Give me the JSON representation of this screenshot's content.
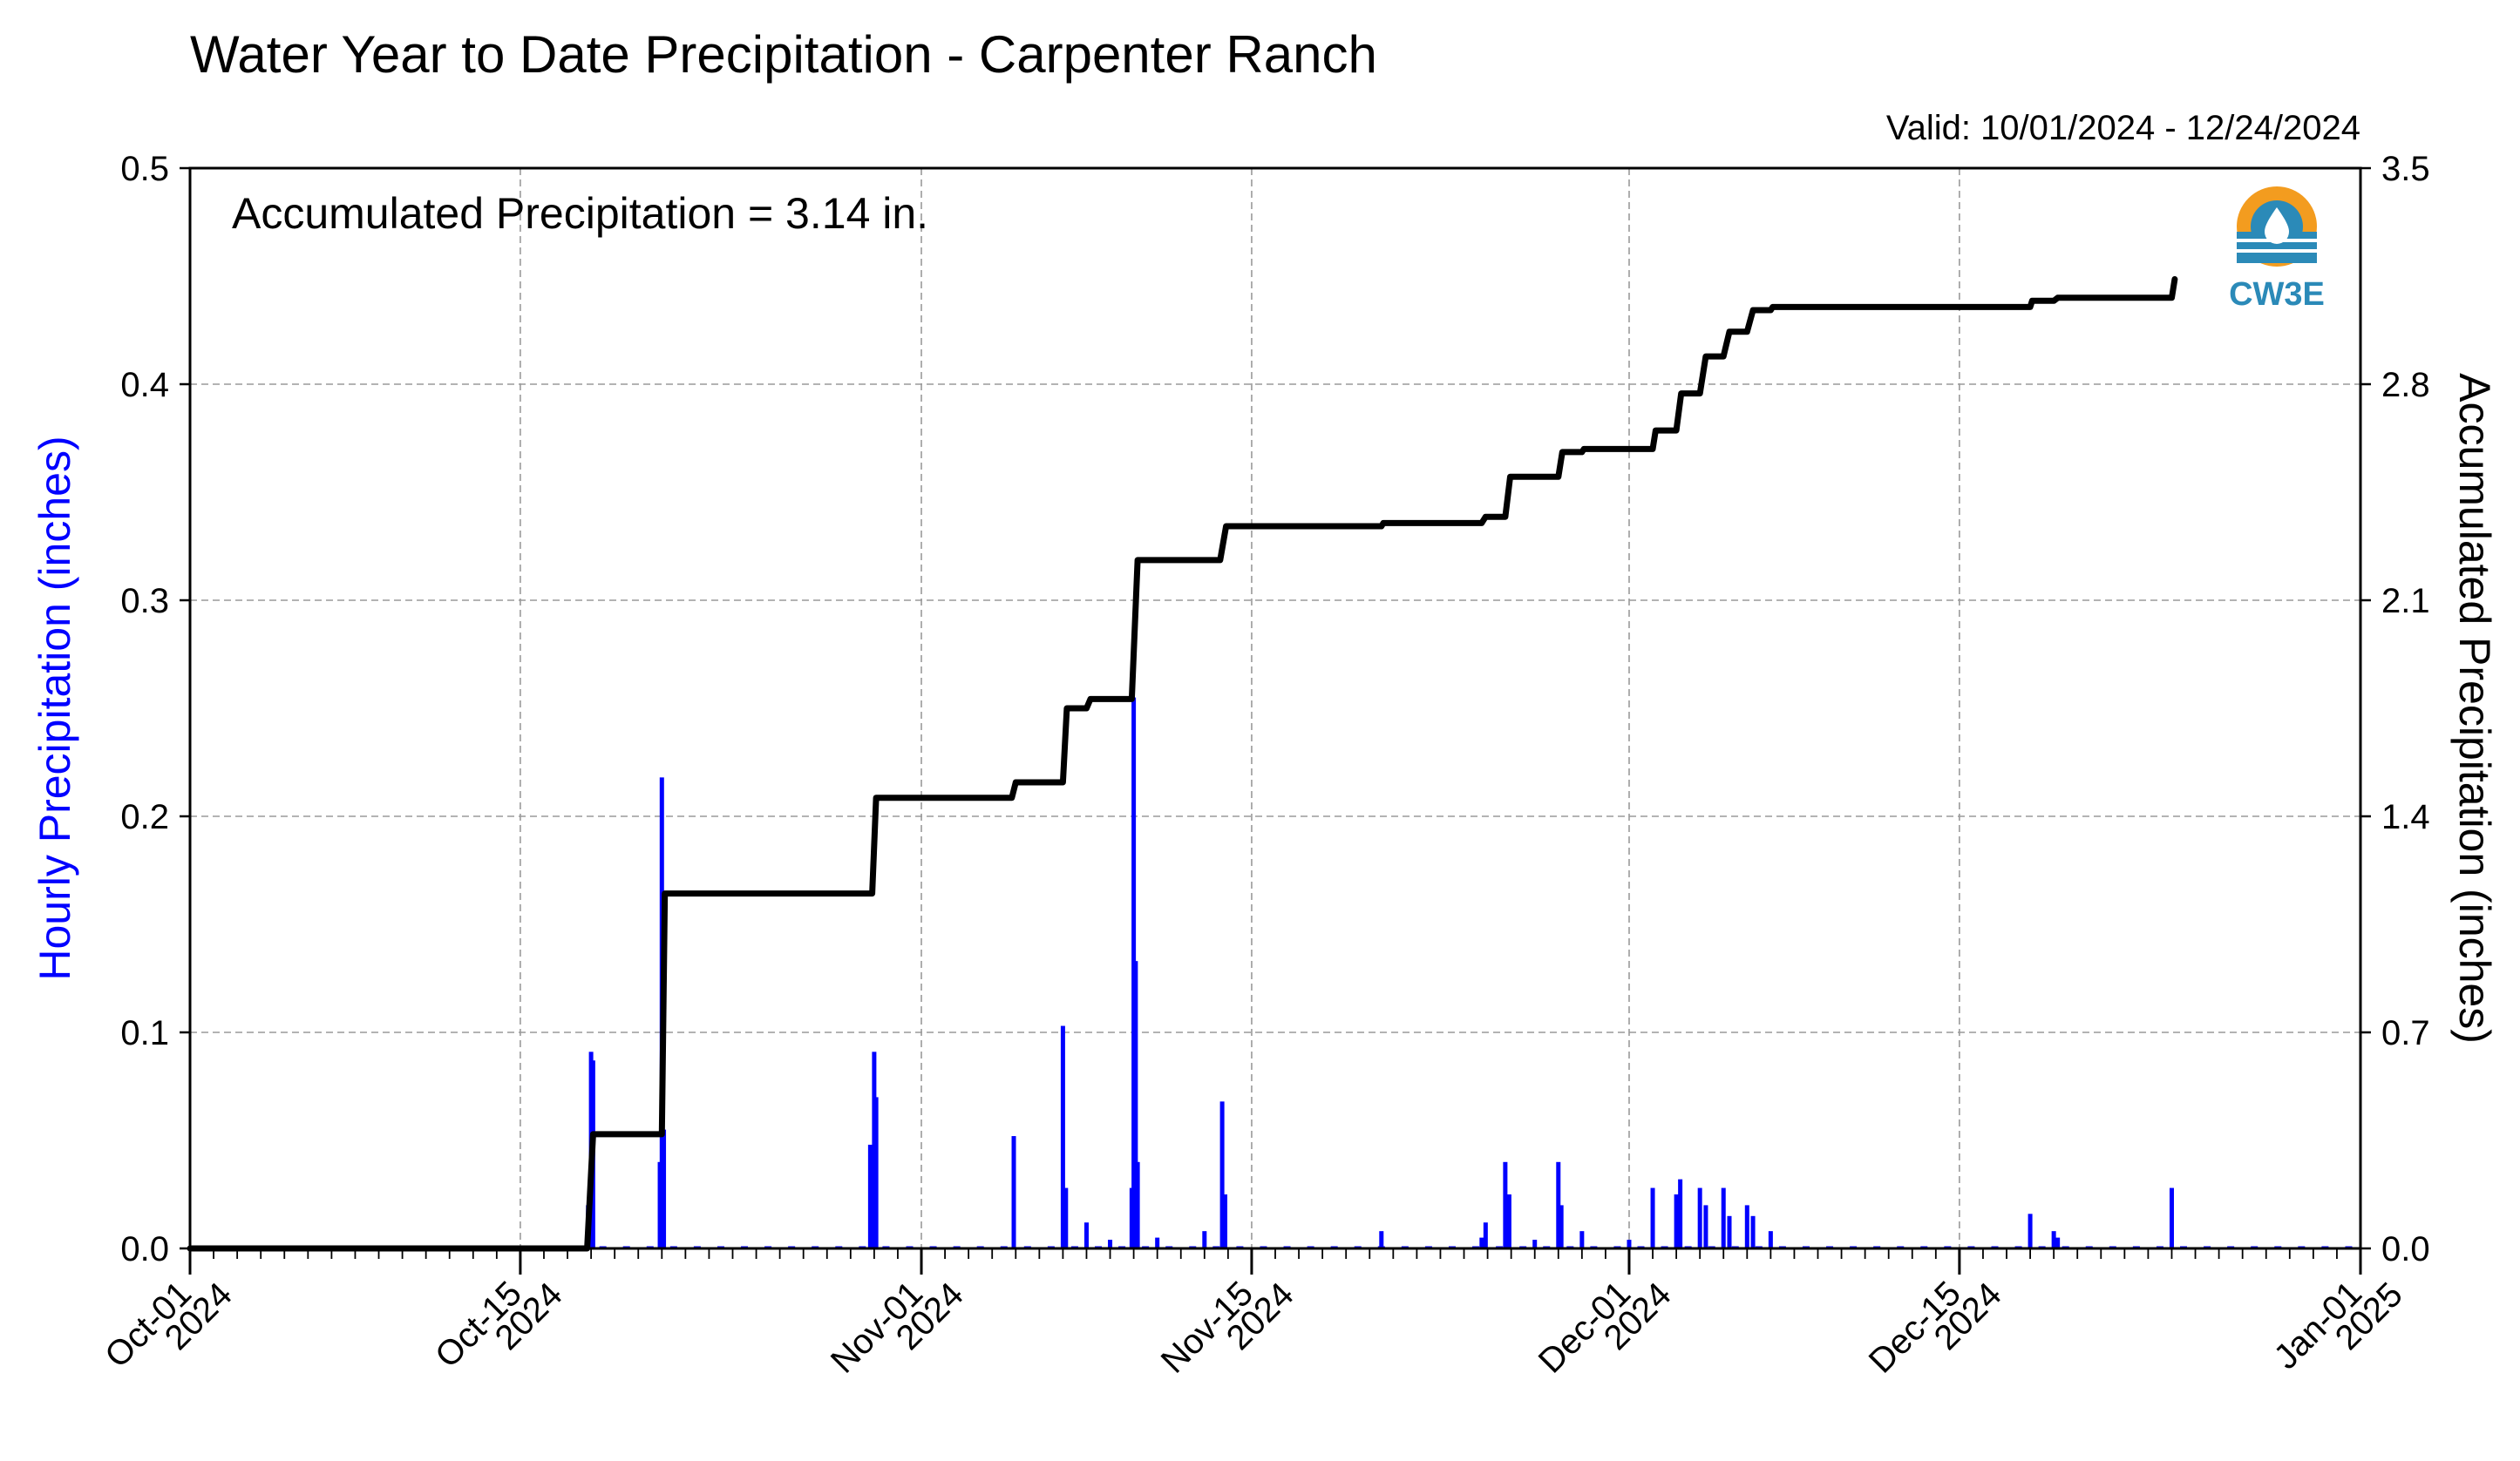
{
  "chart_data": {
    "type": "bar",
    "title": "Water Year to Date Precipitation - Carpenter Ranch",
    "subtitle": "Valid: 10/01/2024 - 12/24/2024",
    "annotation": "Accumulated Precipitation = 3.14 in.",
    "ylabel_left": "Hourly Precipitation (inches)",
    "ylabel_right": "Accumulated Precipitation (inches)",
    "xlabel": "",
    "x_start": "2024-10-01",
    "x_end": "2025-01-01",
    "ylim_left": [
      0,
      0.5
    ],
    "ylim_right": [
      0,
      3.5
    ],
    "grid": true,
    "left_ticks": [
      "0.0",
      "0.1",
      "0.2",
      "0.3",
      "0.4",
      "0.5"
    ],
    "right_ticks": [
      "0.0",
      "0.7",
      "1.4",
      "2.1",
      "2.8",
      "3.5"
    ],
    "x_ticks": [
      {
        "date": "2024-10-01",
        "line1": "Oct-01",
        "line2": "2024"
      },
      {
        "date": "2024-10-15",
        "line1": "Oct-15",
        "line2": "2024"
      },
      {
        "date": "2024-11-01",
        "line1": "Nov-01",
        "line2": "2024"
      },
      {
        "date": "2024-11-15",
        "line1": "Nov-15",
        "line2": "2024"
      },
      {
        "date": "2024-12-01",
        "line1": "Dec-01",
        "line2": "2024"
      },
      {
        "date": "2024-12-15",
        "line1": "Dec-15",
        "line2": "2024"
      },
      {
        "date": "2025-01-01",
        "line1": "Jan-01",
        "line2": "2025"
      }
    ],
    "series": [
      {
        "name": "Hourly Precipitation",
        "type": "bar",
        "color": "#0000ff",
        "points": [
          [
            "2024-10-17 21:00",
            0.02
          ],
          [
            "2024-10-18 00:00",
            0.091
          ],
          [
            "2024-10-18 02:00",
            0.087
          ],
          [
            "2024-10-20 22:00",
            0.04
          ],
          [
            "2024-10-21 00:00",
            0.218
          ],
          [
            "2024-10-21 02:00",
            0.055
          ],
          [
            "2024-10-29 20:00",
            0.048
          ],
          [
            "2024-10-30 00:00",
            0.091
          ],
          [
            "2024-10-30 02:00",
            0.07
          ],
          [
            "2024-11-04 22:00",
            0.052
          ],
          [
            "2024-11-07 00:00",
            0.103
          ],
          [
            "2024-11-07 03:00",
            0.028
          ],
          [
            "2024-11-08 00:00",
            0.012
          ],
          [
            "2024-11-09 00:00",
            0.004
          ],
          [
            "2024-11-09 22:00",
            0.028
          ],
          [
            "2024-11-10 00:00",
            0.255
          ],
          [
            "2024-11-10 02:00",
            0.133
          ],
          [
            "2024-11-10 04:00",
            0.04
          ],
          [
            "2024-11-11 00:00",
            0.005
          ],
          [
            "2024-11-13 00:00",
            0.008
          ],
          [
            "2024-11-13 18:00",
            0.068
          ],
          [
            "2024-11-13 21:00",
            0.025
          ],
          [
            "2024-11-20 12:00",
            0.008
          ],
          [
            "2024-11-24 18:00",
            0.005
          ],
          [
            "2024-11-24 22:00",
            0.012
          ],
          [
            "2024-11-25 18:00",
            0.04
          ],
          [
            "2024-11-25 22:00",
            0.025
          ],
          [
            "2024-11-27 00:00",
            0.004
          ],
          [
            "2024-11-28 00:00",
            0.04
          ],
          [
            "2024-11-28 03:00",
            0.02
          ],
          [
            "2024-11-29 00:00",
            0.008
          ],
          [
            "2024-12-01 00:00",
            0.004
          ],
          [
            "2024-12-02 00:00",
            0.028
          ],
          [
            "2024-12-03 00:00",
            0.025
          ],
          [
            "2024-12-03 04:00",
            0.032
          ],
          [
            "2024-12-04 00:00",
            0.028
          ],
          [
            "2024-12-04 06:00",
            0.02
          ],
          [
            "2024-12-05 00:00",
            0.028
          ],
          [
            "2024-12-05 06:00",
            0.015
          ],
          [
            "2024-12-06 00:00",
            0.02
          ],
          [
            "2024-12-06 06:00",
            0.015
          ],
          [
            "2024-12-07 00:00",
            0.008
          ],
          [
            "2024-12-18 00:00",
            0.016
          ],
          [
            "2024-12-19 00:00",
            0.008
          ],
          [
            "2024-12-19 04:00",
            0.005
          ],
          [
            "2024-12-24 00:00",
            0.028
          ]
        ]
      },
      {
        "name": "Accumulated Precipitation",
        "type": "step",
        "color": "#000000",
        "points": [
          [
            "2024-10-01 00:00",
            0.0
          ],
          [
            "2024-10-17 20:00",
            0.0
          ],
          [
            "2024-10-18 02:00",
            0.37
          ],
          [
            "2024-10-21 00:00",
            0.37
          ],
          [
            "2024-10-21 03:00",
            1.15
          ],
          [
            "2024-10-29 22:00",
            1.15
          ],
          [
            "2024-10-30 02:00",
            1.46
          ],
          [
            "2024-11-04 20:00",
            1.46
          ],
          [
            "2024-11-05 00:00",
            1.51
          ],
          [
            "2024-11-07 00:00",
            1.51
          ],
          [
            "2024-11-07 04:00",
            1.75
          ],
          [
            "2024-11-08 00:00",
            1.75
          ],
          [
            "2024-11-08 04:00",
            1.78
          ],
          [
            "2024-11-09 22:00",
            1.78
          ],
          [
            "2024-11-10 04:00",
            2.23
          ],
          [
            "2024-11-13 16:00",
            2.23
          ],
          [
            "2024-11-13 22:00",
            2.34
          ],
          [
            "2024-11-20 12:00",
            2.34
          ],
          [
            "2024-11-20 14:00",
            2.35
          ],
          [
            "2024-11-24 18:00",
            2.35
          ],
          [
            "2024-11-24 22:00",
            2.37
          ],
          [
            "2024-11-25 18:00",
            2.37
          ],
          [
            "2024-11-25 23:00",
            2.5
          ],
          [
            "2024-11-28 00:00",
            2.5
          ],
          [
            "2024-11-28 04:00",
            2.58
          ],
          [
            "2024-11-29 00:00",
            2.58
          ],
          [
            "2024-11-29 02:00",
            2.59
          ],
          [
            "2024-12-02 00:00",
            2.59
          ],
          [
            "2024-12-02 03:00",
            2.65
          ],
          [
            "2024-12-03 00:00",
            2.65
          ],
          [
            "2024-12-03 05:00",
            2.77
          ],
          [
            "2024-12-04 00:00",
            2.77
          ],
          [
            "2024-12-04 06:00",
            2.89
          ],
          [
            "2024-12-05 00:00",
            2.89
          ],
          [
            "2024-12-05 06:00",
            2.97
          ],
          [
            "2024-12-06 00:00",
            2.97
          ],
          [
            "2024-12-06 06:00",
            3.04
          ],
          [
            "2024-12-07 00:00",
            3.04
          ],
          [
            "2024-12-07 02:00",
            3.05
          ],
          [
            "2024-12-18 00:00",
            3.05
          ],
          [
            "2024-12-18 02:00",
            3.07
          ],
          [
            "2024-12-19 00:00",
            3.07
          ],
          [
            "2024-12-19 04:00",
            3.08
          ],
          [
            "2024-12-24 00:00",
            3.08
          ],
          [
            "2024-12-24 03:00",
            3.14
          ]
        ]
      }
    ]
  },
  "logo": {
    "text": "CW3E",
    "ring_color": "#f39c1f",
    "accent_color": "#2b8ab8"
  },
  "colors": {
    "left_axis_label": "#0000ff",
    "grid": "#9a9a9a"
  }
}
